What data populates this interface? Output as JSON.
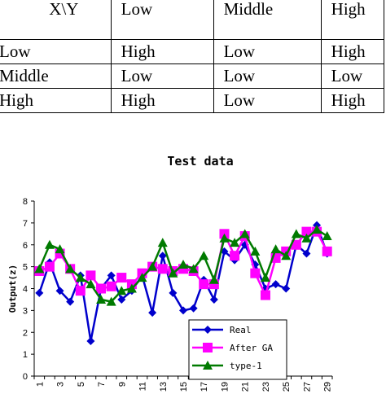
{
  "rule_table": {
    "header": [
      "X\\Y",
      "Low",
      "Middle",
      "High"
    ],
    "rows": [
      [
        "Low",
        "High",
        "Low",
        "High"
      ],
      [
        "Middle",
        "Low",
        "Low",
        "Low"
      ],
      [
        "High",
        "High",
        "Low",
        "High"
      ]
    ]
  },
  "chart_data": {
    "type": "line",
    "title": "Test  data",
    "ylabel": "Output(z)",
    "xlabel": "",
    "ylim": [
      0,
      8
    ],
    "yticks": [
      "0",
      "1",
      "2",
      "3",
      "4",
      "5",
      "6",
      "7",
      "8"
    ],
    "x": [
      1,
      2,
      3,
      4,
      5,
      6,
      7,
      8,
      9,
      10,
      11,
      12,
      13,
      14,
      15,
      16,
      17,
      18,
      19,
      20,
      21,
      22,
      23,
      24,
      25,
      26,
      27,
      28,
      29
    ],
    "xtick_labels": [
      "1",
      "3",
      "5",
      "7",
      "9",
      "11",
      "13",
      "15",
      "17",
      "19",
      "21",
      "23",
      "25",
      "27",
      "29"
    ],
    "legend_position": "bottom-right",
    "series": [
      {
        "name": "Real",
        "color": "#0000cc",
        "marker": "diamond",
        "values": [
          3.8,
          5.2,
          3.9,
          3.4,
          4.6,
          1.6,
          4.0,
          4.6,
          3.5,
          3.9,
          4.6,
          2.9,
          5.5,
          3.8,
          3.0,
          3.1,
          4.4,
          3.5,
          5.7,
          5.3,
          6.0,
          5.1,
          4.0,
          4.2,
          4.0,
          6.0,
          5.6,
          6.9,
          5.6
        ]
      },
      {
        "name": "After GA",
        "color": "#ff00ff",
        "marker": "square",
        "values": [
          4.8,
          5.0,
          5.6,
          4.9,
          3.9,
          4.6,
          4.0,
          4.1,
          4.5,
          4.2,
          4.7,
          5.0,
          4.9,
          4.8,
          4.9,
          4.8,
          4.2,
          4.2,
          6.5,
          5.5,
          6.4,
          4.7,
          3.7,
          5.4,
          5.7,
          6.0,
          6.6,
          6.6,
          5.7
        ]
      },
      {
        "name": "type-1",
        "color": "#007a00",
        "marker": "triangle",
        "values": [
          4.9,
          6.0,
          5.8,
          4.9,
          4.5,
          4.2,
          3.5,
          3.4,
          3.9,
          4.0,
          4.5,
          5.0,
          6.1,
          4.7,
          5.1,
          4.9,
          5.5,
          4.4,
          6.3,
          6.1,
          6.5,
          5.7,
          4.5,
          5.8,
          5.5,
          6.5,
          6.3,
          6.7,
          6.4
        ]
      }
    ]
  }
}
